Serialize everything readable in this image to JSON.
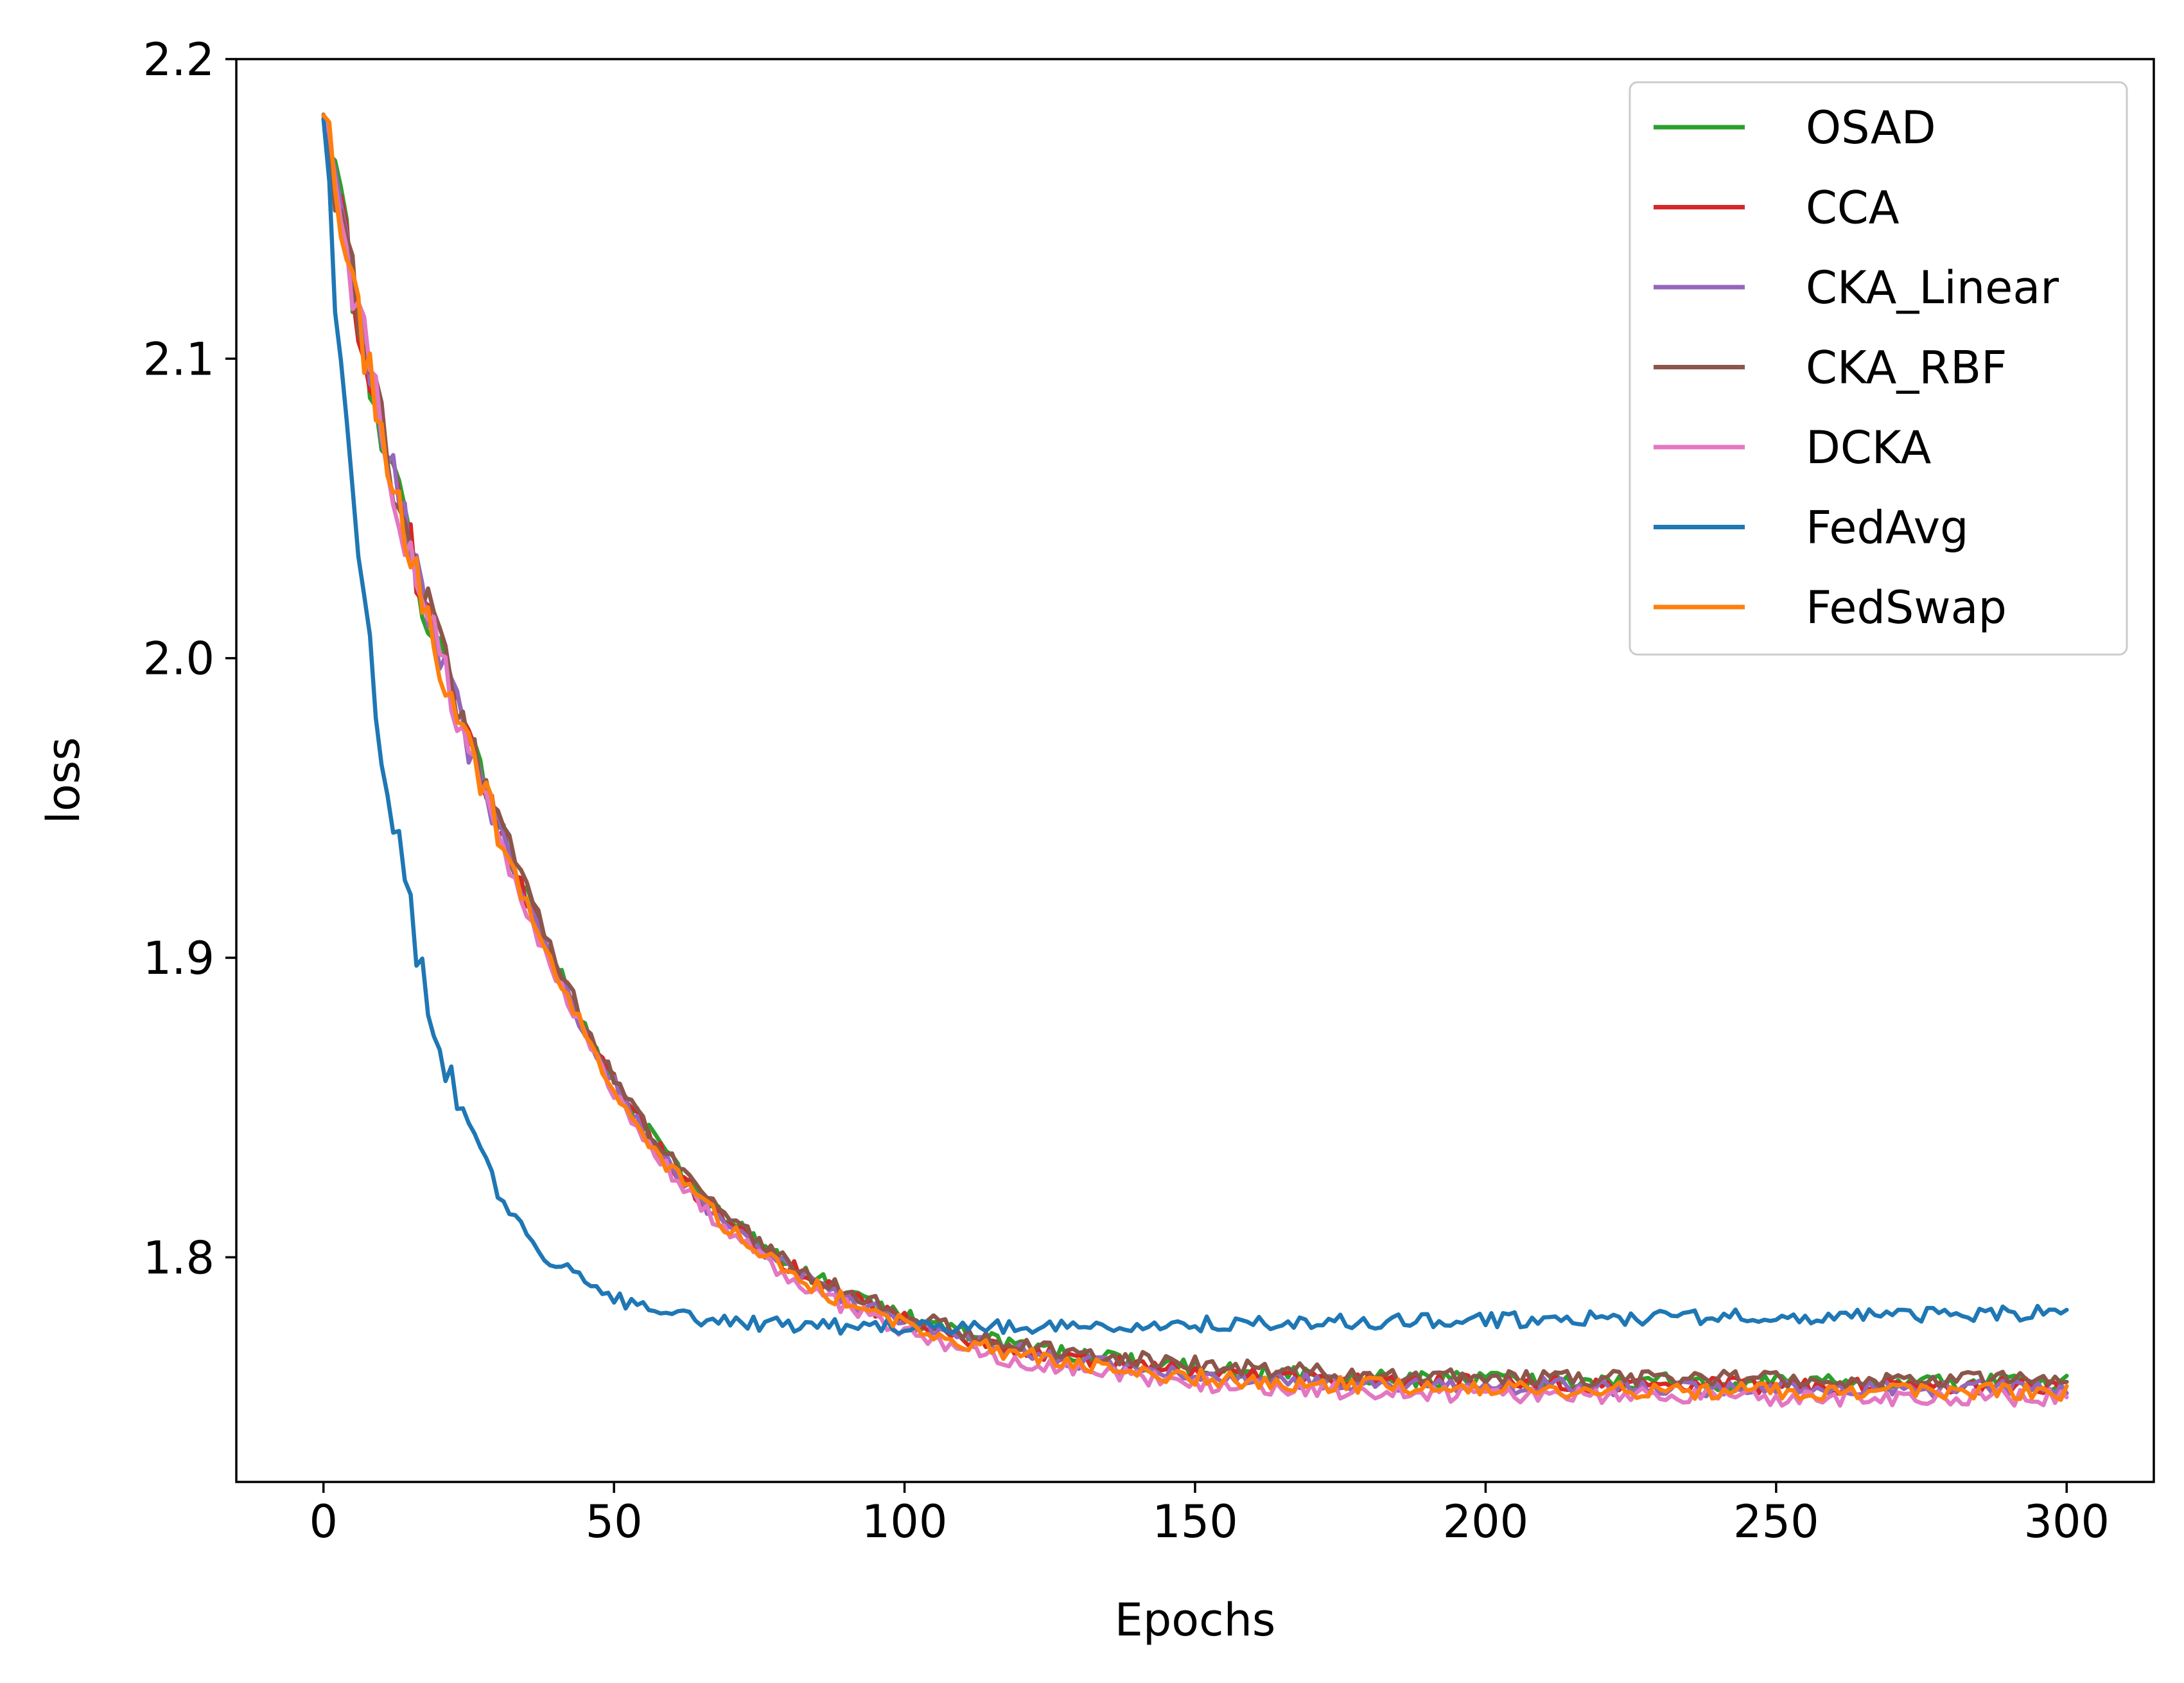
{
  "chart_data": {
    "type": "line",
    "xlabel": "Epochs",
    "ylabel": "loss",
    "xlim": [
      -15,
      315
    ],
    "ylim": [
      1.725,
      2.2
    ],
    "xticks": [
      0,
      50,
      100,
      150,
      200,
      250,
      300
    ],
    "yticks": [
      1.8,
      1.9,
      2.0,
      2.1,
      2.2
    ],
    "ytick_labels": [
      "1.8",
      "1.9",
      "2.0",
      "2.1",
      "2.2"
    ],
    "grid": false,
    "legend_position": "top-right",
    "series": [
      {
        "name": "OSAD",
        "color": "#2ca02c",
        "start": 2.18,
        "final": 1.758,
        "rate": 34,
        "hump": 0.012,
        "noise": 0.0028,
        "seed": 1
      },
      {
        "name": "CCA",
        "color": "#d62728",
        "start": 2.18,
        "final": 1.757,
        "rate": 34,
        "hump": 0.012,
        "noise": 0.0028,
        "seed": 2
      },
      {
        "name": "CKA_Linear",
        "color": "#9467bd",
        "start": 2.18,
        "final": 1.756,
        "rate": 34,
        "hump": 0.012,
        "noise": 0.0028,
        "seed": 3
      },
      {
        "name": "CKA_RBF",
        "color": "#8c564b",
        "start": 2.18,
        "final": 1.759,
        "rate": 34,
        "hump": 0.014,
        "noise": 0.0028,
        "seed": 4
      },
      {
        "name": "DCKA",
        "color": "#e377c2",
        "start": 2.18,
        "final": 1.753,
        "rate": 34,
        "hump": 0.012,
        "noise": 0.0028,
        "seed": 5
      },
      {
        "name": "FedAvg",
        "color": "#1f77b4",
        "start": 2.18,
        "final": 1.774,
        "rate": 14,
        "hump": 0.0,
        "noise": 0.0025,
        "seed": 6,
        "drift": 2.5e-05
      },
      {
        "name": "FedSwap",
        "color": "#ff7f0e",
        "start": 2.18,
        "final": 1.755,
        "rate": 34,
        "hump": 0.012,
        "noise": 0.0028,
        "seed": 7
      }
    ]
  }
}
